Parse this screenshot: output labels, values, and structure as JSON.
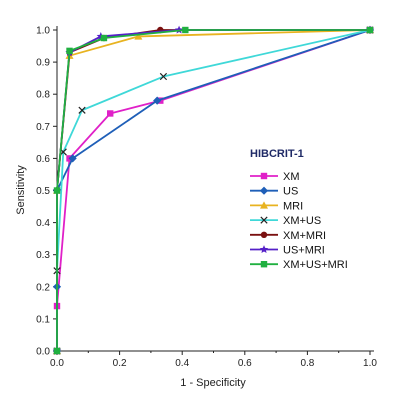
{
  "chart_data": {
    "type": "line",
    "title": "",
    "xlabel": "1 - Specificity",
    "ylabel": "Sensitivity",
    "xlim": [
      0.0,
      1.0
    ],
    "ylim": [
      0.0,
      1.0
    ],
    "xticks": [
      "0.0",
      "0.2",
      "0.4",
      "0.6",
      "0.8",
      "1.0"
    ],
    "yticks": [
      "0.0",
      "0.1",
      "0.2",
      "0.3",
      "0.4",
      "0.5",
      "0.6",
      "0.7",
      "0.8",
      "0.9",
      "1.0"
    ],
    "grid": false,
    "legend": {
      "title": "HIBCRIT-1",
      "placement": "center-right"
    },
    "series": [
      {
        "name": "XM",
        "color": "#e020c8",
        "marker": "square",
        "x": [
          0.0,
          0.0,
          0.04,
          0.17,
          0.33,
          1.0
        ],
        "y": [
          0.0,
          0.14,
          0.6,
          0.74,
          0.78,
          1.0
        ]
      },
      {
        "name": "US",
        "color": "#1f5fb8",
        "marker": "diamond",
        "x": [
          0.0,
          0.0,
          0.0,
          0.05,
          0.32,
          1.0
        ],
        "y": [
          0.0,
          0.2,
          0.5,
          0.6,
          0.78,
          1.0
        ]
      },
      {
        "name": "MRI",
        "color": "#e8b320",
        "marker": "triangle",
        "x": [
          0.0,
          0.0,
          0.04,
          0.26,
          1.0
        ],
        "y": [
          0.0,
          0.5,
          0.92,
          0.98,
          1.0
        ]
      },
      {
        "name": "XM+US",
        "color": "#3fd8d8",
        "marker": "x",
        "x": [
          0.0,
          0.0,
          0.02,
          0.08,
          0.34,
          1.0
        ],
        "y": [
          0.0,
          0.25,
          0.62,
          0.75,
          0.855,
          1.0
        ]
      },
      {
        "name": "XM+MRI",
        "color": "#7a1010",
        "marker": "circle",
        "x": [
          0.0,
          0.0,
          0.04,
          0.15,
          0.33,
          1.0
        ],
        "y": [
          0.0,
          0.5,
          0.93,
          0.975,
          1.0,
          1.0
        ]
      },
      {
        "name": "US+MRI",
        "color": "#5520c8",
        "marker": "star",
        "x": [
          0.0,
          0.0,
          0.04,
          0.14,
          0.39,
          1.0
        ],
        "y": [
          0.0,
          0.5,
          0.93,
          0.98,
          1.0,
          1.0
        ]
      },
      {
        "name": "XM+US+MRI",
        "color": "#20b040",
        "marker": "square",
        "x": [
          0.0,
          0.0,
          0.04,
          0.15,
          0.41,
          1.0
        ],
        "y": [
          0.0,
          0.5,
          0.935,
          0.975,
          1.0,
          1.0
        ]
      }
    ]
  }
}
